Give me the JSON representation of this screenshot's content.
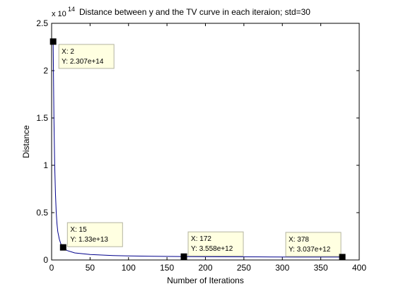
{
  "chart_data": {
    "type": "line",
    "title": "Distance between y and the TV curve in each iteraion; std=30",
    "xlabel": "Number of Iterations",
    "ylabel": "Distance",
    "y_exponent_base": "x 10",
    "y_exponent_power": "14",
    "xlim": [
      0,
      400
    ],
    "ylim": [
      0,
      2.5
    ],
    "xticks": [
      0,
      50,
      100,
      150,
      200,
      250,
      300,
      350,
      400
    ],
    "xtick_labels": [
      "0",
      "50",
      "100",
      "150",
      "200",
      "250",
      "300",
      "350",
      "400"
    ],
    "yticks": [
      0,
      0.5,
      1,
      1.5,
      2,
      2.5
    ],
    "ytick_labels": [
      "0",
      "0.5",
      "1",
      "1.5",
      "2",
      "2.5"
    ],
    "grid": false,
    "line_color": "#00008b",
    "series": [
      {
        "x": [
          2,
          3,
          4,
          5,
          6,
          7,
          8,
          10,
          12,
          15,
          20,
          30,
          50,
          80,
          100,
          130,
          172,
          220,
          270,
          320,
          378
        ],
        "y": [
          2.307,
          1.5,
          1.0,
          0.7,
          0.5,
          0.38,
          0.3,
          0.22,
          0.17,
          0.133,
          0.1,
          0.075,
          0.058,
          0.047,
          0.043,
          0.039,
          0.03558,
          0.034,
          0.0325,
          0.031,
          0.03037
        ]
      }
    ],
    "datatips": [
      {
        "x": 2,
        "y": 2.307,
        "label_x": "X: 2",
        "label_y": "Y: 2.307e+14"
      },
      {
        "x": 15,
        "y": 0.133,
        "label_x": "X: 15",
        "label_y": "Y: 1.33e+13"
      },
      {
        "x": 172,
        "y": 0.03558,
        "label_x": "X: 172",
        "label_y": "Y: 3.558e+12"
      },
      {
        "x": 378,
        "y": 0.03037,
        "label_x": "X: 378",
        "label_y": "Y: 3.037e+12"
      }
    ],
    "datatip_fill": "#ffffe1",
    "datatip_border": "#b4b4a0"
  }
}
